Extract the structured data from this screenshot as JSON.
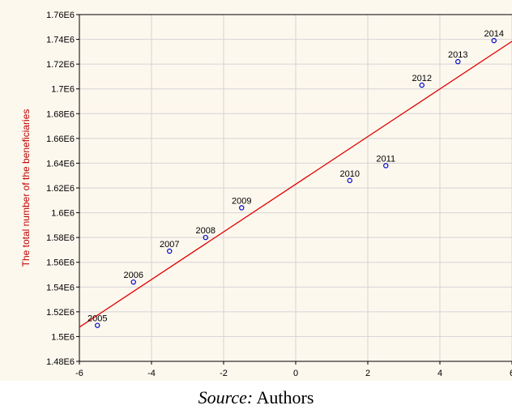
{
  "caption": {
    "source_label": "Source:",
    "source_value": " Authors"
  },
  "chart_data": {
    "type": "scatter",
    "title": "",
    "xlabel": "",
    "ylabel": "The total number of the beneficiaries",
    "xlim": [
      -6,
      6
    ],
    "ylim": [
      1480000,
      1760000
    ],
    "grid": true,
    "x_ticks": [
      "-6",
      "-4",
      "-2",
      "0",
      "2",
      "4",
      "6"
    ],
    "y_ticks": [
      "1.48E6",
      "1.5E6",
      "1.52E6",
      "1.54E6",
      "1.56E6",
      "1.58E6",
      "1.6E6",
      "1.62E6",
      "1.64E6",
      "1.66E6",
      "1.68E6",
      "1.7E6",
      "1.72E6",
      "1.74E6",
      "1.76E6"
    ],
    "points": [
      {
        "label": "2005",
        "x": -5.5,
        "y": 1509000
      },
      {
        "label": "2006",
        "x": -4.5,
        "y": 1544000
      },
      {
        "label": "2007",
        "x": -3.5,
        "y": 1569000
      },
      {
        "label": "2008",
        "x": -2.5,
        "y": 1580000
      },
      {
        "label": "2009",
        "x": -1.5,
        "y": 1604000
      },
      {
        "label": "2010",
        "x": 1.5,
        "y": 1626000
      },
      {
        "label": "2011",
        "x": 2.5,
        "y": 1638000
      },
      {
        "label": "2012",
        "x": 3.5,
        "y": 1703000
      },
      {
        "label": "2013",
        "x": 4.5,
        "y": 1722000
      },
      {
        "label": "2014",
        "x": 5.5,
        "y": 1739000
      }
    ],
    "trendline": {
      "x": [
        -6,
        6
      ],
      "y": [
        1507600,
        1738400
      ]
    },
    "colors": {
      "point": "#0000cc",
      "trendline": "#e00000",
      "ylabel": "#c00000",
      "grid": "#d4d4d4",
      "background": "#fdf8ee"
    }
  }
}
